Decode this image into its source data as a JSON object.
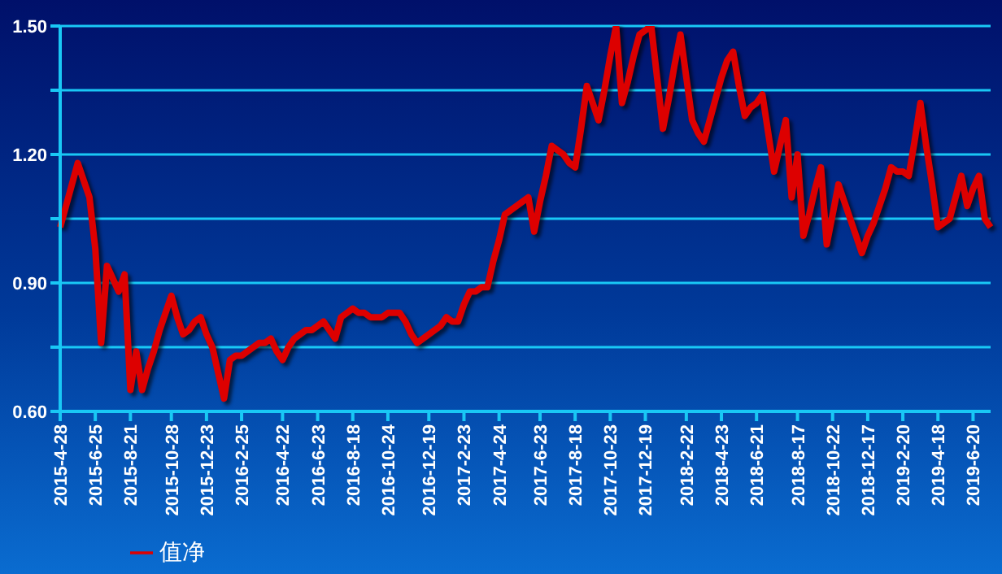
{
  "chart_data": {
    "type": "line",
    "categories": [
      "2015-4-28",
      null,
      null,
      null,
      null,
      null,
      "2015-6-25",
      null,
      null,
      null,
      null,
      null,
      "2015-8-21",
      null,
      null,
      null,
      null,
      null,
      null,
      "2015-10-28",
      null,
      null,
      null,
      null,
      null,
      "2015-12-23",
      null,
      null,
      null,
      null,
      null,
      "2016-2-25",
      null,
      null,
      null,
      null,
      null,
      null,
      "2016-4-22",
      null,
      null,
      null,
      null,
      null,
      "2016-6-23",
      null,
      null,
      null,
      null,
      null,
      "2016-8-18",
      null,
      null,
      null,
      null,
      null,
      "2016-10-24",
      null,
      null,
      null,
      null,
      null,
      null,
      "2016-12-19",
      null,
      null,
      null,
      null,
      null,
      "2017-2-23",
      null,
      null,
      null,
      null,
      null,
      "2017-4-24",
      null,
      null,
      null,
      null,
      null,
      null,
      "2017-6-23",
      null,
      null,
      null,
      null,
      null,
      "2017-8-18",
      null,
      null,
      null,
      null,
      null,
      "2017-10-23",
      null,
      null,
      null,
      null,
      null,
      "2017-12-19",
      null,
      null,
      null,
      null,
      null,
      null,
      "2018-2-22",
      null,
      null,
      null,
      null,
      null,
      "2018-4-23",
      null,
      null,
      null,
      null,
      null,
      "2018-6-21",
      null,
      null,
      null,
      null,
      null,
      null,
      "2018-8-17",
      null,
      null,
      null,
      null,
      null,
      "2018-10-22",
      null,
      null,
      null,
      null,
      null,
      "2018-12-17",
      null,
      null,
      null,
      null,
      null,
      "2019-2-20",
      null,
      null,
      null,
      null,
      null,
      "2019-4-18",
      null,
      null,
      null,
      null,
      null,
      "2019-6-20",
      null,
      null,
      null
    ],
    "series": [
      {
        "name": "值净",
        "color": "#dd0000",
        "values": [
          1.03,
          1.08,
          1.13,
          1.18,
          1.14,
          1.1,
          0.98,
          0.76,
          0.94,
          0.91,
          0.88,
          0.92,
          0.65,
          0.74,
          0.65,
          0.7,
          0.74,
          0.79,
          0.83,
          0.87,
          0.82,
          0.78,
          0.79,
          0.81,
          0.82,
          0.78,
          0.75,
          0.69,
          0.63,
          0.72,
          0.73,
          0.73,
          0.74,
          0.75,
          0.76,
          0.76,
          0.77,
          0.74,
          0.72,
          0.75,
          0.77,
          0.78,
          0.79,
          0.79,
          0.8,
          0.81,
          0.79,
          0.77,
          0.82,
          0.83,
          0.84,
          0.83,
          0.83,
          0.82,
          0.82,
          0.82,
          0.83,
          0.83,
          0.83,
          0.81,
          0.78,
          0.76,
          0.77,
          0.78,
          0.79,
          0.8,
          0.82,
          0.81,
          0.81,
          0.85,
          0.88,
          0.88,
          0.89,
          0.89,
          0.95,
          1.0,
          1.06,
          1.07,
          1.08,
          1.09,
          1.1,
          1.02,
          1.09,
          1.15,
          1.22,
          1.21,
          1.2,
          1.18,
          1.17,
          1.26,
          1.36,
          1.32,
          1.28,
          1.35,
          1.43,
          1.5,
          1.32,
          1.37,
          1.43,
          1.48,
          1.49,
          1.5,
          1.38,
          1.26,
          1.33,
          1.41,
          1.48,
          1.38,
          1.28,
          1.25,
          1.23,
          1.28,
          1.33,
          1.38,
          1.42,
          1.44,
          1.36,
          1.29,
          1.31,
          1.32,
          1.34,
          1.25,
          1.16,
          1.22,
          1.28,
          1.1,
          1.2,
          1.01,
          1.06,
          1.12,
          1.17,
          0.99,
          1.06,
          1.13,
          1.09,
          1.05,
          1.01,
          0.97,
          1.01,
          1.04,
          1.08,
          1.12,
          1.17,
          1.16,
          1.16,
          1.15,
          1.23,
          1.32,
          1.22,
          1.13,
          1.03,
          1.04,
          1.05,
          1.1,
          1.15,
          1.08,
          1.12,
          1.15,
          1.05,
          1.03
        ]
      }
    ],
    "ylim": [
      0.6,
      1.5
    ],
    "yticks": [
      {
        "value": 0.6,
        "label": "0.60"
      },
      {
        "value": 0.75,
        "label": null
      },
      {
        "value": 0.9,
        "label": "0.90"
      },
      {
        "value": 1.05,
        "label": null
      },
      {
        "value": 1.2,
        "label": "1.20"
      },
      {
        "value": 1.35,
        "label": null
      },
      {
        "value": 1.5,
        "label": "1.50"
      }
    ],
    "grid": "y",
    "legend": "bottom left",
    "marker": "none",
    "line_style": "solid"
  }
}
